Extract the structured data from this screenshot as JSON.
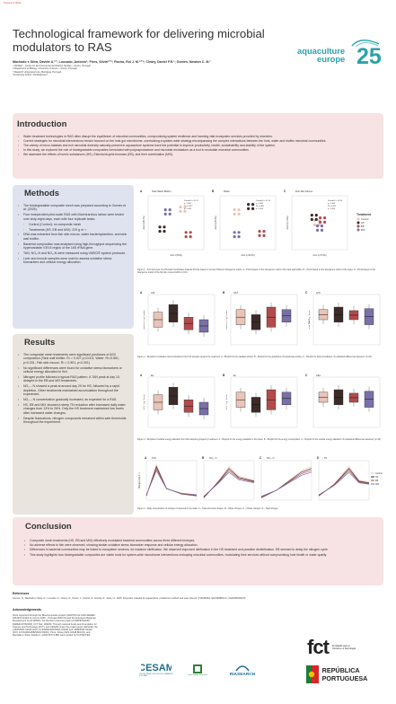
{
  "corner_mark": "Preview to Share",
  "title": "Technological framework for delivering microbial modulators to RAS",
  "authors": "Machado e Silva, Davide A.¹'²; Louvado, António¹; Pires, Sílvia¹'²'³; Rocha, Rui J. M.¹'²'³; Cleary, Daniel F.R.¹; Gomes, Newton C. M.¹",
  "affiliations": [
    "¹ CESAM – Centre for Environmental and Marine Studies – Aveiro, Portugal",
    "² Department of Biology, University of Aveiro – Aveiro, Portugal",
    "³ Riaearch Unipessoal Lda, Mortágua, Portugal",
    "*presenting author: davide@ua.pt"
  ],
  "logo": {
    "line1": "aquaculture",
    "line2": "europe",
    "number": "25"
  },
  "intro": {
    "heading": "Introduction",
    "items": [
      "Water treatment technologies in RAS often disrupt the equilibrium of microbial communities, compromising system resilience and harming vital ecosystem services provided by microbes.",
      "Current strategies for microbial interventions remain focused on the host gut microbiome, overlooking a system-wide strategy encompassing the complex interactions between the host, water and biofilm microbial communities.",
      "The variety of micro-habitats and rich microbial diversity naturally present in aquaculture systems have the potential to improve productivity, health, sustainability and stability of the system.",
      "In this study, we explored the role of biodegradable composites formulated with polycaprolactone and microbial modulators as a tool to modulate microbial communities.",
      "We assessed the effects of humic substances (HS), Eisenia bicyclis biomass (EB), and their combination (MIX)."
    ]
  },
  "methods": {
    "heading": "Methods",
    "items": [
      {
        "text": "The biodegradable composite mesh was prepared according to Gomes et al. (2025).",
        "sub": false
      },
      {
        "text": "Four independent pilot-scale RAS with Dicentrarchus labrax were tested over sixty-eight days, each with four replicate tanks:",
        "sub": false
      },
      {
        "text": "Control (Control): no composite mesh",
        "sub": true
      },
      {
        "text": "Treatments (HS, EB and MIX): 229 g m⁻³.",
        "sub": true
      },
      {
        "text": "DNA was extracted from fish skin mucus, water bacterioplankton, and tank wall biofilm.",
        "sub": false
      },
      {
        "text": "Bacterial composition was analysed using high-throughput sequencing the hypervariable V3/V4 region of the 16S rRNA gene.",
        "sub": false
      },
      {
        "text": "TAN, NO₂-N and NO₃-N were measured using VARIO® system protocols.",
        "sub": false
      },
      {
        "text": "Liver and muscle samples were used to assess oxidative stress biomarkers and cellular energy allocation",
        "sub": false
      }
    ]
  },
  "results": {
    "heading": "Results",
    "items": [
      "The composite mesh treatments were significant predictors of ASV composition (Tank wall biofilm: R² = 0.927 p<0.001; Water: R²=0.851, p<0.001; Fish skin mucus: R² = 0.501, p<0.001)",
      "No significant differences were found for oxidative stress biomarkers or cellular energy allocation in fish.",
      "Nitrogen profile followed a typical RAS pattern. A TAN peak at day 10, delayed in the EB and MIX treatments.",
      "NO₂ – N showed a peak at around day 29 for HS, followed by a rapid depletion. Other treatments maintained accumulation throughout the experiment.",
      "NO₃ – N concentration gradually increased, as expected for a RAS.",
      "HS, EB and MIX showed a steep TN reduction after increased daily water changes from 13% to 26%. Only the HS treatment maintained low levels after increased water changes.",
      "Despite fluctuations, nitrogen compounds remained within safe thresholds throughout the experiment."
    ]
  },
  "fig1": {
    "panels": [
      {
        "label": "A",
        "title": "Tank Water Biofilm",
        "stats": [
          "Pseudo-F = 30.71",
          "p < 0.001",
          "R² = 0.927",
          "p < 0.001"
        ],
        "xlabel": "Axis 1 (54%)",
        "ylabel": "Axis 2 (26.7%)"
      },
      {
        "label": "B",
        "title": "Water",
        "stats": [
          "Pseudo-F = 51.44",
          "p < 0.001",
          "R² = 0.851",
          "p < 0.001"
        ],
        "xlabel": "Axis 1 (40.2%)",
        "ylabel": "Axis 2 (32.3%)"
      },
      {
        "label": "C",
        "title": "Fish Skin Mucus",
        "stats": [
          "Pseudo-F = 4.554",
          "p < 0.001",
          "R² = 0.501",
          "p < 0.001"
        ],
        "xlabel": "Axis 1 (37.4%)",
        "ylabel": "Axis 2 (17.6%)"
      }
    ],
    "legend_title": "Treatment",
    "legend": [
      {
        "name": "Control",
        "color": "#e9c4b8"
      },
      {
        "name": "HS",
        "color": "#3a2a28"
      },
      {
        "name": "EB",
        "color": "#b24b4b"
      },
      {
        "name": "MIX",
        "color": "#7a6fa8"
      }
    ],
    "caption": "Figure 1 – First two axes of a Principal Coordinates Analysis (PCoA) based on Jensen-Shannon divergence matrix. A – PCoA based on the divergence matrix of the tank wall biofilm; B – PCoA based on the divergence matrix of the water; C – PCoA based on the divergence matrix of the fish skin mucus biofilm (n=16)."
  },
  "fig2": {
    "panels": [
      {
        "label": "A",
        "title": "CAT",
        "ylabel": "μmol min⁻¹ mg⁻¹ protein"
      },
      {
        "label": "B",
        "title": "GST",
        "ylabel": "nmol min⁻¹ mg⁻¹ protein"
      },
      {
        "label": "C",
        "title": "LPO",
        "ylabel": "nmol TBARS g⁻¹ tissue"
      }
    ],
    "caption": "Figure 2 – Boxplots of oxidative stress biomarkers from fish samples grouped by treatment. A – Boxplot for the catalase activity; B – Boxplot for the glutathione S-transferase activity; C – Boxplot for lipid peroxidation. No statistical differences detected. (n=16)."
  },
  "fig3": {
    "panels": [
      {
        "label": "A",
        "title": "Ea",
        "ylabel": "mJ h⁻¹ mg⁻¹ tissue"
      },
      {
        "label": "B",
        "title": "Ec",
        "ylabel": "mJ h⁻¹ mg⁻¹ tissue"
      },
      {
        "label": "C",
        "title": "CEA",
        "ylabel": ""
      }
    ],
    "caption": "Figure 3 – Boxplots of cellular energy allocation from fish samples grouped by treatment. A – Boxplot for the energy available in the tissue; B – Boxplot for the energy consumption; C – Boxplot for the cellular energy allocation. No statistical differences detected. (n=16)."
  },
  "fig4": {
    "panels": [
      {
        "label": "A",
        "title": "TAN"
      },
      {
        "label": "B",
        "title": "NO₂ - N"
      },
      {
        "label": "C",
        "title": "NO₃ - N"
      },
      {
        "label": "D",
        "title": "TN"
      }
    ],
    "ylabel": "Nitrogen (mg L⁻¹)",
    "legend": [
      {
        "name": "Control",
        "color": "#e9c4b8"
      },
      {
        "name": "HS",
        "color": "#3a2a28"
      },
      {
        "name": "EB",
        "color": "#b24b4b"
      },
      {
        "name": "MIX",
        "color": "#7a6fa8"
      }
    ],
    "caption": "Figure 4 – Daily concentration of nitrogen compounds in the water. A – Total ammonia nitrogen; B – Nitrite nitrogen; C – Nitrate nitrogen; D – Total nitrogen."
  },
  "conclusion": {
    "heading": "Conclusion",
    "items": [
      "Composite mesh treatments (HS, EB and MIX) effectively modulated bacterial communities across three different biotopes.",
      "No adverse effects to fish were observed, showing similar oxidative stress biomarker response and cellular energy allocation.",
      "Differences in bacterial communities may be linked to ecosystem services, for instance nitrification. We observed improved nitrification in the HS treatment and possible denitrification. EB seemed to delay the nitrogen cycle.",
      "This study highlights how biodegradable composites are viable tools for system-wide microbiome interventions reshaping microbial communities, modulating their services without compromising host health or water quality."
    ]
  },
  "references": {
    "heading": "References",
    "text": "Gomes, N., Machado e Silva, D., Louvado, A., Cleary, D., Pedro, V., Osório, R., Rocha, R., Silva, H., 2025. Polymeric material for aquaculture, production method and uses thereof. PT118845A, EP23288813.6, US20250031676"
  },
  "acknowledgements": {
    "heading": "Acknowledgements",
    "text": "Work supported through the BlueComposite project (CENTRO-01-0145-FEDER-181223) funded by Centro 2020 – Portugal 2020 through the European Regional Development Fund (ERDF), the NextGen Canvas project (COMPETE2030-FEDER-00762000), FCT Ref. 183450. Through national funds and Foundation for Science and Technology (FCT), and CESAM under the project grant (CESAM), the (UIDP/50017/2020 (DOI: 10.54499/UIDP/50017/2020) and UIDB/50017/2020 (DOI: 10.54499/UIDB/50017/2020)), Pires, Silvia (2022.10348.BD/AN), and Machado e Silva, Davide A. (2020.06774.BD) were funded by FCT/MCTES."
  },
  "partner_logos": {
    "cesam": "CESAM",
    "cesam_sub": "CENTRO PARA OS ESTUDOS DO AMBIENTE E DO MAR",
    "ua": "universidade de aveiro",
    "riasearch": "RIASEARCH",
    "fct": "fct",
    "fct_sub": "Fundação para a Ciência e a Tecnologia",
    "rp_line1": "REPÚBLICA",
    "rp_line2": "PORTUGUESA"
  }
}
